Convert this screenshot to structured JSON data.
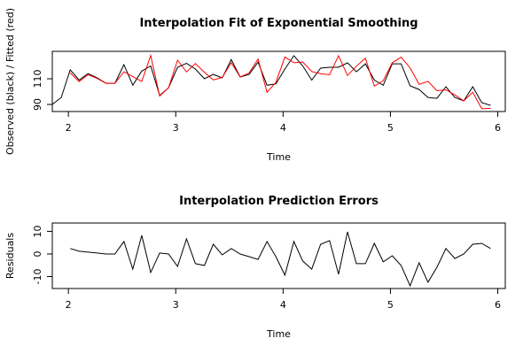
{
  "chart_data": [
    {
      "type": "line",
      "title": "Interpolation Fit of Exponential Smoothing",
      "xlabel": "Time",
      "ylabel": "Observed (black) / Fitted (red)",
      "x": [
        1.85,
        1.933,
        2.017,
        2.1,
        2.183,
        2.267,
        2.35,
        2.433,
        2.517,
        2.6,
        2.683,
        2.767,
        2.85,
        2.933,
        3.017,
        3.1,
        3.183,
        3.267,
        3.35,
        3.433,
        3.517,
        3.6,
        3.683,
        3.767,
        3.85,
        3.933,
        4.017,
        4.1,
        4.183,
        4.267,
        4.35,
        4.433,
        4.517,
        4.6,
        4.683,
        4.767,
        4.85,
        4.933,
        5.017,
        5.1,
        5.183,
        5.267,
        5.35,
        5.433,
        5.517,
        5.6,
        5.683,
        5.767,
        5.85,
        5.933
      ],
      "series": [
        {
          "color": "#000000",
          "values": [
            90,
            95.5,
            117,
            109,
            114,
            110.7,
            106.5,
            106.5,
            121,
            105,
            116,
            120,
            97,
            103,
            119,
            122,
            117.6,
            110,
            113.4,
            110.7,
            125,
            111.4,
            113.4,
            123,
            105,
            106,
            117.6,
            128,
            120,
            109,
            118.3,
            119,
            119,
            122.4,
            115.5,
            121.7,
            109,
            105,
            121.7,
            121.7,
            104.5,
            101.7,
            95.5,
            94.8,
            103.8,
            95.5,
            92.8,
            103.8,
            91.4,
            89.3
          ]
        },
        {
          "color": "#ff0000",
          "values": [
            null,
            null,
            114.6,
            107.8,
            113.2,
            110.3,
            106.5,
            106.5,
            115.5,
            111.7,
            107.8,
            128.2,
            96.6,
            103,
            124.5,
            115.3,
            121.9,
            115.1,
            109.1,
            111.1,
            122.6,
            111.4,
            114.6,
            125.4,
            99.5,
            107.2,
            127,
            122.5,
            123.1,
            115.7,
            114,
            113.1,
            128,
            112.6,
            119.8,
            126,
            104.3,
            108.5,
            122.5,
            126.8,
            118.6,
            105.6,
            108,
            100.7,
            101.4,
            97.5,
            92.8,
            99.5,
            86.7,
            86.9
          ]
        }
      ],
      "xlim": [
        1.85,
        6.07
      ],
      "ylim": [
        84.5,
        131.4
      ],
      "xticks": [
        2,
        3,
        4,
        5,
        6
      ],
      "yticks": [
        90,
        110
      ]
    },
    {
      "type": "line",
      "title": "Interpolation Prediction Errors",
      "xlabel": "Time",
      "ylabel": "Residuals",
      "x": [
        2.017,
        2.1,
        2.183,
        2.267,
        2.35,
        2.433,
        2.517,
        2.6,
        2.683,
        2.767,
        2.85,
        2.933,
        3.017,
        3.1,
        3.183,
        3.267,
        3.35,
        3.433,
        3.517,
        3.6,
        3.683,
        3.767,
        3.85,
        3.933,
        4.017,
        4.1,
        4.183,
        4.267,
        4.35,
        4.433,
        4.517,
        4.6,
        4.683,
        4.767,
        4.85,
        4.933,
        5.017,
        5.1,
        5.183,
        5.267,
        5.35,
        5.433,
        5.517,
        5.6,
        5.683,
        5.767,
        5.85,
        5.933
      ],
      "series": [
        {
          "color": "#000000",
          "values": [
            2.4,
            1.2,
            0.8,
            0.4,
            0,
            0,
            5.5,
            -6.7,
            8.2,
            -8.2,
            0.4,
            0,
            -5.5,
            6.7,
            -4.3,
            -5.1,
            4.3,
            -0.4,
            2.4,
            0,
            -1.2,
            -2.4,
            5.5,
            -1.2,
            -9.4,
            5.5,
            -3.1,
            -6.7,
            4.3,
            5.9,
            -9,
            9.8,
            -4.3,
            -4.3,
            4.7,
            -3.5,
            -0.8,
            -5.1,
            -14.1,
            -3.9,
            -12.5,
            -5.9,
            2.4,
            -2,
            0,
            4.3,
            4.7,
            2.4
          ]
        }
      ],
      "xlim": [
        1.85,
        6.07
      ],
      "ylim": [
        -15.3,
        13.7
      ],
      "xticks": [
        2,
        3,
        4,
        5,
        6
      ],
      "yticks": [
        -10,
        0,
        10
      ]
    }
  ]
}
